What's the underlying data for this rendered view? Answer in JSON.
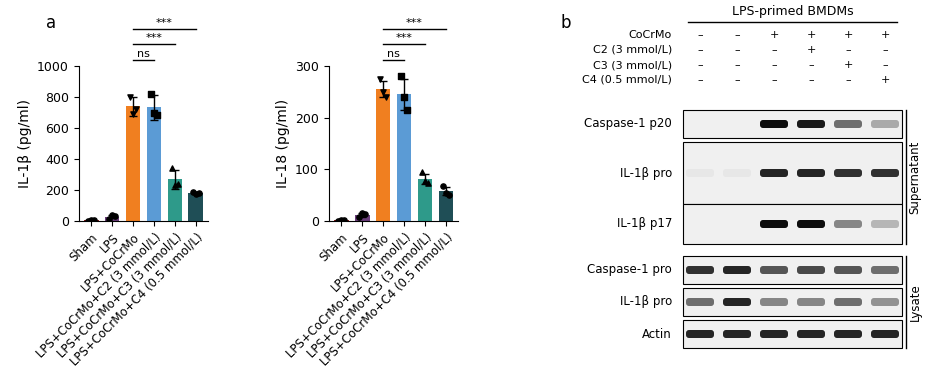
{
  "panel_labels": [
    "a",
    "b"
  ],
  "chart_data": [
    {
      "type": "bar",
      "categories": [
        "Sham",
        "LPS",
        "LPS+CoCrMo",
        "LPS+CoCrMo+C2 (3 mmol/L)",
        "LPS+CoCrMo+C3 (3 mmol/L)",
        "LPS+CoCrMo+C4 (0.5 mmol/L)"
      ],
      "values": [
        5,
        30,
        740,
        735,
        270,
        180
      ],
      "errors": [
        3,
        12,
        60,
        80,
        60,
        6
      ],
      "points": [
        [
          2,
          8,
          5
        ],
        [
          15,
          42,
          35
        ],
        [
          800,
          690,
          720
        ],
        [
          820,
          700,
          685
        ],
        [
          340,
          230,
          240
        ],
        [
          185,
          175,
          180
        ]
      ],
      "colors": [
        "#8b1a1a",
        "#6a3d7a",
        "#f07f20",
        "#5b9bd5",
        "#2e9a8a",
        "#1f4e56"
      ],
      "y_label": "IL-1β (pg/ml)",
      "ylim": [
        0,
        1000
      ],
      "yticks": [
        0,
        200,
        400,
        600,
        800,
        1000
      ],
      "comparisons": [
        {
          "from": "LPS+CoCrMo",
          "to": "LPS+CoCrMo+C2 (3 mmol/L)",
          "label": "ns"
        },
        {
          "from": "LPS+CoCrMo",
          "to": "LPS+CoCrMo+C3 (3 mmol/L)",
          "label": "***"
        },
        {
          "from": "LPS+CoCrMo",
          "to": "LPS+CoCrMo+C4 (0.5 mmol/L)",
          "label": "***"
        }
      ]
    },
    {
      "type": "bar",
      "categories": [
        "Sham",
        "LPS",
        "LPS+CoCrMo",
        "LPS+CoCrMo+C2 (3 mmol/L)",
        "LPS+CoCrMo+C3 (3 mmol/L)",
        "LPS+CoCrMo+C4 (0.5 mmol/L)"
      ],
      "values": [
        2,
        12,
        255,
        245,
        82,
        58
      ],
      "errors": [
        1,
        3,
        15,
        30,
        10,
        8
      ],
      "points": [
        [
          1,
          3,
          2
        ],
        [
          8,
          15,
          13
        ],
        [
          275,
          250,
          240
        ],
        [
          280,
          240,
          215
        ],
        [
          95,
          78,
          73
        ],
        [
          68,
          55,
          51
        ]
      ],
      "colors": [
        "#8b1a1a",
        "#6a3d7a",
        "#f07f20",
        "#5b9bd5",
        "#2e9a8a",
        "#1f4e56"
      ],
      "y_label": "IL-18 (pg/ml)",
      "ylim": [
        0,
        300
      ],
      "yticks": [
        0,
        100,
        200,
        300
      ],
      "comparisons": [
        {
          "from": "LPS+CoCrMo",
          "to": "LPS+CoCrMo+C2 (3 mmol/L)",
          "label": "ns"
        },
        {
          "from": "LPS+CoCrMo",
          "to": "LPS+CoCrMo+C3 (3 mmol/L)",
          "label": "***"
        },
        {
          "from": "LPS+CoCrMo",
          "to": "LPS+CoCrMo+C4 (0.5 mmol/L)",
          "label": "***"
        }
      ]
    }
  ],
  "blot": {
    "title": "LPS-primed BMDMs",
    "conditions": [
      {
        "label": "CoCrMo",
        "signs": [
          "–",
          "–",
          "+",
          "+",
          "+",
          "+"
        ]
      },
      {
        "label": "C2 (3 mmol/L)",
        "signs": [
          "–",
          "–",
          "–",
          "+",
          "–",
          "–"
        ]
      },
      {
        "label": "C3 (3 mmol/L)",
        "signs": [
          "–",
          "–",
          "–",
          "–",
          "+",
          "–"
        ]
      },
      {
        "label": "C4 (0.5 mmol/L)",
        "signs": [
          "–",
          "–",
          "–",
          "–",
          "–",
          "+"
        ]
      }
    ],
    "sections": [
      {
        "label": "Supernatant",
        "bands": [
          {
            "label": "Caspase-1 p20",
            "intensity": [
              0,
              0,
              1,
              0.95,
              0.6,
              0.35
            ]
          },
          {
            "label": "IL-1β pro",
            "intensity": [
              0.1,
              0.1,
              0.9,
              0.9,
              0.85,
              0.85
            ]
          },
          {
            "label": "IL-1β p17",
            "intensity": [
              0,
              0,
              1,
              1,
              0.5,
              0.3
            ]
          }
        ]
      },
      {
        "label": "Lysate",
        "bands": [
          {
            "label": "Caspase-1 pro",
            "intensity": [
              0.85,
              0.9,
              0.7,
              0.75,
              0.7,
              0.6
            ]
          },
          {
            "label": "IL-1β pro",
            "intensity": [
              0.6,
              0.9,
              0.5,
              0.5,
              0.6,
              0.45
            ]
          },
          {
            "label": "Actin",
            "intensity": [
              0.9,
              0.9,
              0.9,
              0.9,
              0.9,
              0.9
            ]
          }
        ]
      }
    ]
  }
}
